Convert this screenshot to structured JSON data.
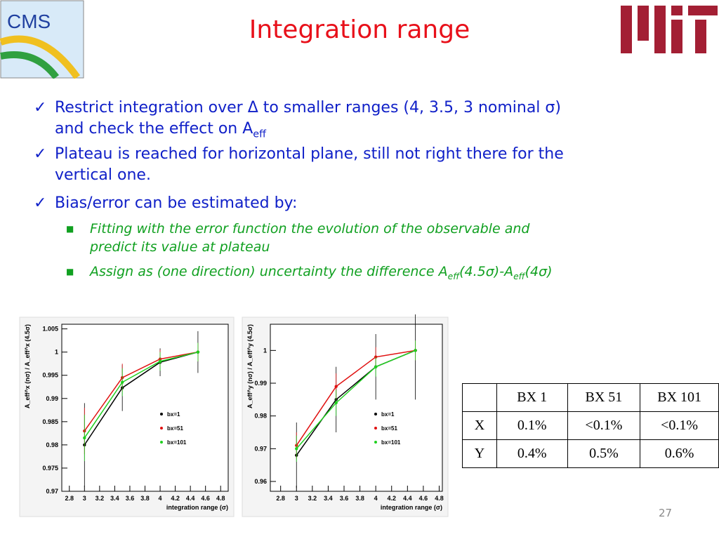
{
  "header": {
    "logo_text": "CMS",
    "title": "Integration range"
  },
  "bullets": [
    {
      "parts": [
        "Restrict integration over Δ to smaller ranges (4, 3.5, 3 nominal σ)",
        "and check the effect on A",
        {
          "sub": "eff"
        }
      ]
    },
    {
      "parts": [
        "Plateau is reached for horizontal plane, still not right there for the",
        "vertical one."
      ]
    },
    {
      "parts": [
        "Bias/error can be estimated by:"
      ]
    }
  ],
  "sub_bullets": [
    {
      "parts": [
        "Fitting with the error function the evolution of the observable and",
        "predict its value at plateau"
      ]
    },
    {
      "parts": [
        "Assign as (one direction) uncertainty the difference A",
        {
          "sub": "eff"
        },
        "(4.5σ)-A",
        {
          "sub": "eff"
        },
        "(4σ)"
      ]
    }
  ],
  "chart_data": [
    {
      "type": "scatter",
      "x_label": "integration range (σ)",
      "y_label": "A_eff^x (nσ) / A_eff^x (4.5σ)",
      "xlim": [
        2.7,
        4.9
      ],
      "ylim": [
        0.97,
        1.006
      ],
      "xticks": [
        2.8,
        3,
        3.2,
        3.4,
        3.6,
        3.8,
        4,
        4.2,
        4.4,
        4.6,
        4.8
      ],
      "yticks": [
        0.97,
        0.975,
        0.98,
        0.985,
        0.99,
        0.995,
        1,
        1.005
      ],
      "x": [
        3,
        3.5,
        4,
        4.5
      ],
      "series": [
        {
          "name": "bx=1",
          "color": "#000000",
          "values": [
            0.98,
            0.9923,
            0.9978,
            1.0
          ],
          "errors": [
            0.009,
            0.005,
            0.003,
            0.0045
          ]
        },
        {
          "name": "bx=51",
          "color": "#e01010",
          "values": [
            0.983,
            0.9945,
            0.9985,
            1.0
          ],
          "errors": [
            0.005,
            0.003,
            0.002,
            0.002
          ]
        },
        {
          "name": "bx=101",
          "color": "#20d020",
          "values": [
            0.9815,
            0.9935,
            0.998,
            1.0
          ],
          "errors": [
            0.005,
            0.003,
            0.002,
            0.002
          ]
        }
      ]
    },
    {
      "type": "scatter",
      "x_label": "integration range (σ)",
      "y_label": "A_eff^y (nσ) / A_eff^y (4.5σ)",
      "xlim": [
        2.67,
        4.84
      ],
      "ylim": [
        0.957,
        1.008
      ],
      "xticks": [
        2.8,
        3,
        3.2,
        3.4,
        3.6,
        3.8,
        4,
        4.2,
        4.4,
        4.6,
        4.8
      ],
      "yticks": [
        0.96,
        0.97,
        0.98,
        0.99,
        1
      ],
      "x": [
        3,
        3.5,
        4,
        4.5
      ],
      "series": [
        {
          "name": "bx=1",
          "color": "#000000",
          "values": [
            0.968,
            0.985,
            0.995,
            1.0
          ],
          "errors": [
            0.01,
            0.01,
            0.01,
            0.015
          ]
        },
        {
          "name": "bx=51",
          "color": "#e01010",
          "values": [
            0.971,
            0.989,
            0.998,
            1.0
          ],
          "errors": [
            0.004,
            0.004,
            0.003,
            0.003
          ]
        },
        {
          "name": "bx=101",
          "color": "#20d020",
          "values": [
            0.97,
            0.984,
            0.995,
            1.0
          ],
          "errors": [
            0.004,
            0.004,
            0.003,
            0.003
          ]
        }
      ]
    }
  ],
  "table": {
    "columns": [
      "BX 1",
      "BX 51",
      "BX 101"
    ],
    "rows": [
      [
        "X",
        "0.1%",
        "<0.1%",
        "<0.1%"
      ],
      [
        "Y",
        "0.4%",
        "0.5%",
        "0.6%"
      ]
    ]
  },
  "page_number": "27"
}
